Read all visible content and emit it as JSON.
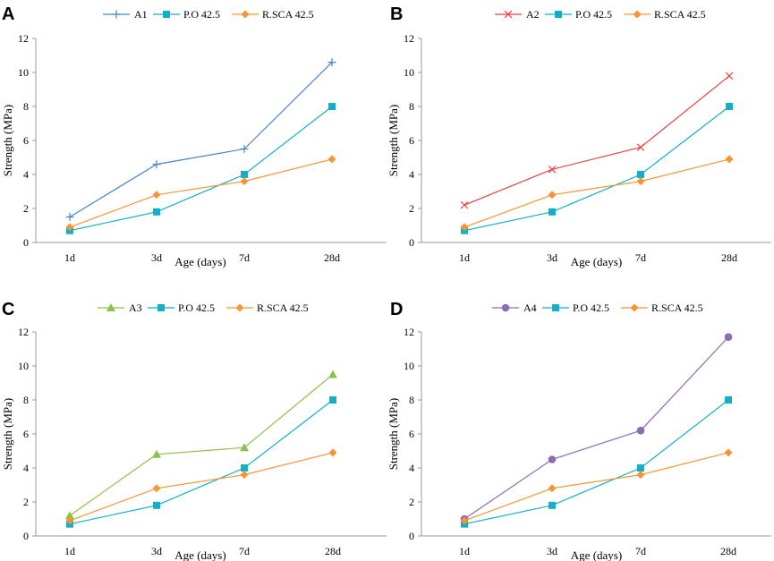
{
  "chart_data": [
    {
      "type": "line",
      "panel_label": "A",
      "categories": [
        "1d",
        "3d",
        "7d",
        "28d"
      ],
      "xlabel": "Age (days)",
      "ylabel": "Strength (MPa)",
      "ylim": [
        0,
        12
      ],
      "yticks": [
        "0",
        "2",
        "4",
        "6",
        "8",
        "10",
        "12"
      ],
      "grid": false,
      "legend_position": "top",
      "series": [
        {
          "name": "A1",
          "marker": "plus",
          "color": "#4a86c5",
          "values": [
            1.5,
            4.6,
            5.5,
            10.6
          ]
        },
        {
          "name": "P.O 42.5",
          "marker": "square",
          "color": "#13afc8",
          "values": [
            0.7,
            1.8,
            4.0,
            8.0
          ]
        },
        {
          "name": "R.SCA 42.5",
          "marker": "diamond",
          "color": "#f49636",
          "values": [
            0.9,
            2.8,
            3.6,
            4.9
          ]
        }
      ]
    },
    {
      "type": "line",
      "panel_label": "B",
      "categories": [
        "1d",
        "3d",
        "7d",
        "28d"
      ],
      "xlabel": "Age (days)",
      "ylabel": "Strength (MPa)",
      "ylim": [
        0,
        12
      ],
      "yticks": [
        "0",
        "2",
        "4",
        "6",
        "8",
        "10",
        "12"
      ],
      "grid": false,
      "legend_position": "top",
      "series": [
        {
          "name": "A2",
          "marker": "x",
          "color": "#e74040",
          "values": [
            2.2,
            4.3,
            5.6,
            9.8
          ]
        },
        {
          "name": "P.O 42.5",
          "marker": "square",
          "color": "#13afc8",
          "values": [
            0.7,
            1.8,
            4.0,
            8.0
          ]
        },
        {
          "name": "R.SCA 42.5",
          "marker": "diamond",
          "color": "#f49636",
          "values": [
            0.9,
            2.8,
            3.6,
            4.9
          ]
        }
      ]
    },
    {
      "type": "line",
      "panel_label": "C",
      "categories": [
        "1d",
        "3d",
        "7d",
        "28d"
      ],
      "xlabel": "Age (days)",
      "ylabel": "Strength (MPa)",
      "ylim": [
        0,
        12
      ],
      "yticks": [
        "0",
        "2",
        "4",
        "6",
        "8",
        "10",
        "12"
      ],
      "grid": false,
      "legend_position": "top",
      "series": [
        {
          "name": "A3",
          "marker": "triangle",
          "color": "#8dc04a",
          "values": [
            1.2,
            4.8,
            5.2,
            9.5
          ]
        },
        {
          "name": "P.O 42.5",
          "marker": "square",
          "color": "#13afc8",
          "values": [
            0.7,
            1.8,
            4.0,
            8.0
          ]
        },
        {
          "name": "R.SCA 42.5",
          "marker": "diamond",
          "color": "#f49636",
          "values": [
            0.9,
            2.8,
            3.6,
            4.9
          ]
        }
      ]
    },
    {
      "type": "line",
      "panel_label": "D",
      "categories": [
        "1d",
        "3d",
        "7d",
        "28d"
      ],
      "xlabel": "Age (days)",
      "ylabel": "Strength (MPa)",
      "ylim": [
        0,
        12
      ],
      "yticks": [
        "0",
        "2",
        "4",
        "6",
        "8",
        "10",
        "12"
      ],
      "grid": false,
      "legend_position": "top",
      "series": [
        {
          "name": "A4",
          "marker": "circle",
          "color": "#8e6cb0",
          "values": [
            1.0,
            4.5,
            6.2,
            11.7
          ]
        },
        {
          "name": "P.O 42.5",
          "marker": "square",
          "color": "#13afc8",
          "values": [
            0.7,
            1.8,
            4.0,
            8.0
          ]
        },
        {
          "name": "R.SCA 42.5",
          "marker": "diamond",
          "color": "#f49636",
          "values": [
            0.9,
            2.8,
            3.6,
            4.9
          ]
        }
      ]
    }
  ]
}
